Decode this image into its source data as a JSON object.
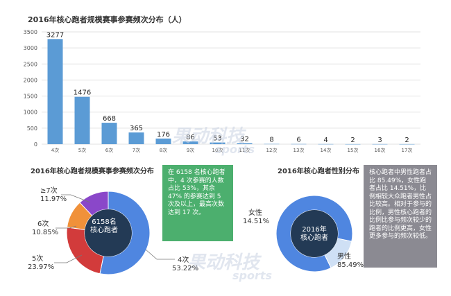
{
  "chart_data": [
    {
      "type": "bar",
      "title": "2016年核心跑者规模赛事参赛频次分布（人）",
      "categories": [
        "4次",
        "5次",
        "6次",
        "7次",
        "8次",
        "9次",
        "10次",
        "11次",
        "12次",
        "13次",
        "14次",
        "15次",
        "16次",
        "17次"
      ],
      "values": [
        3277,
        1476,
        668,
        365,
        176,
        86,
        53,
        32,
        8,
        6,
        4,
        2,
        3,
        2
      ],
      "ylim": [
        0,
        3500
      ],
      "yticks": [
        0,
        500,
        1000,
        1500,
        2000,
        2500,
        3000,
        3500
      ],
      "grid": true,
      "color": "#5b9bd5"
    },
    {
      "type": "pie",
      "title": "2016年核心跑者规模赛事参赛频次分布",
      "center_label": [
        "6158名",
        "核心跑者"
      ],
      "slices": [
        {
          "label": "4次",
          "pct": "53.22%",
          "value": 53.22,
          "color": "#4f86e0"
        },
        {
          "label": "5次",
          "pct": "23.97%",
          "value": 23.97,
          "color": "#d23b3b"
        },
        {
          "label": "6次",
          "pct": "10.85%",
          "value": 10.85,
          "color": "#f0913a"
        },
        {
          "label": "≥7次",
          "pct": "11.97%",
          "value": 11.97,
          "color": "#8a47c9"
        }
      ]
    },
    {
      "type": "pie",
      "title": "2016年核心跑者性别分布",
      "center_label": [
        "2016年",
        "核心跑者"
      ],
      "slices": [
        {
          "label": "男性",
          "pct": "85.49%",
          "value": 85.49,
          "color": "#4f86e0"
        },
        {
          "label": "女性",
          "pct": "14.51%",
          "value": 14.51,
          "color": "#cfe0f5"
        }
      ]
    }
  ],
  "notes": {
    "frequency": "在 6158 名核心跑者中，4 次参赛的人数占比 53%，其余 47% 的参赛达到 5 次及以上，最高次数达到 17 次。",
    "gender": "核心跑者中男性跑者占比 85.49%，女性跑者占比 14.51%，比例相较大众跑者男性占比较高。相对于参与的比例，男性核心跑者的比例比参与频次较少的跑者的比例更高，女性更多参与的频次较低。"
  },
  "watermark": {
    "brand": "果动科技",
    "sub": "sports"
  }
}
